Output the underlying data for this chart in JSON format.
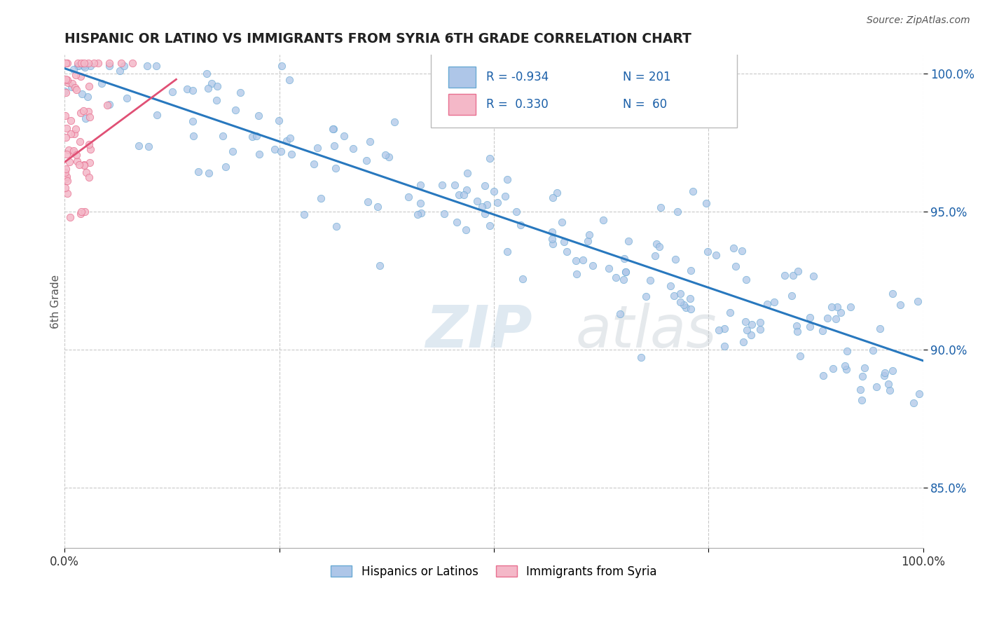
{
  "title": "HISPANIC OR LATINO VS IMMIGRANTS FROM SYRIA 6TH GRADE CORRELATION CHART",
  "source_text": "Source: ZipAtlas.com",
  "ylabel": "6th Grade",
  "watermark_zip": "ZIP",
  "watermark_atlas": "atlas",
  "xlim": [
    0.0,
    1.0
  ],
  "ylim": [
    0.828,
    1.007
  ],
  "yticks": [
    0.85,
    0.9,
    0.95,
    1.0
  ],
  "ytick_labels": [
    "85.0%",
    "90.0%",
    "95.0%",
    "100.0%"
  ],
  "xticks": [
    0.0,
    0.25,
    0.5,
    0.75,
    1.0
  ],
  "xtick_labels": [
    "0.0%",
    "",
    "",
    "",
    "100.0%"
  ],
  "legend_r_blue": "-0.934",
  "legend_n_blue": "201",
  "legend_r_pink": "0.330",
  "legend_n_pink": "60",
  "legend_label_blue": "Hispanics or Latinos",
  "legend_label_pink": "Immigrants from Syria",
  "blue_color": "#aec6e8",
  "blue_edge_color": "#6aaad4",
  "blue_line_color": "#2878be",
  "pink_color": "#f4b8c8",
  "pink_edge_color": "#e87090",
  "pink_line_color": "#e05075",
  "background_color": "#ffffff",
  "grid_color": "#bbbbbb",
  "title_color": "#222222",
  "legend_text_color": "#1a5fa8",
  "source_color": "#555555",
  "ylabel_color": "#555555",
  "blue_line_x0": 0.0,
  "blue_line_y0": 1.002,
  "blue_line_x1": 1.0,
  "blue_line_y1": 0.896,
  "pink_line_x0": 0.0,
  "pink_line_y0": 0.968,
  "pink_line_x1": 0.13,
  "pink_line_y1": 0.998
}
